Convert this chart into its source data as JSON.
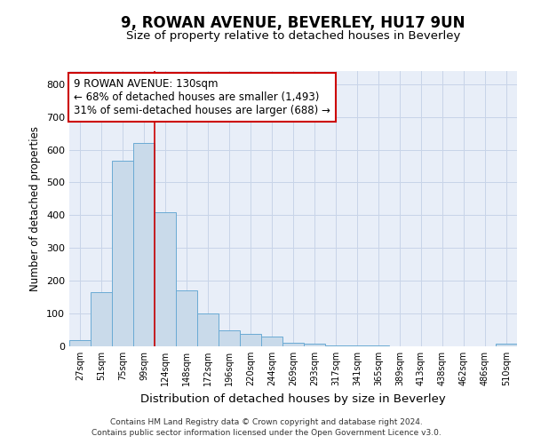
{
  "title1": "9, ROWAN AVENUE, BEVERLEY, HU17 9UN",
  "title2": "Size of property relative to detached houses in Beverley",
  "xlabel": "Distribution of detached houses by size in Beverley",
  "ylabel": "Number of detached properties",
  "categories": [
    "27sqm",
    "51sqm",
    "75sqm",
    "99sqm",
    "124sqm",
    "148sqm",
    "172sqm",
    "196sqm",
    "220sqm",
    "244sqm",
    "269sqm",
    "293sqm",
    "317sqm",
    "341sqm",
    "365sqm",
    "389sqm",
    "413sqm",
    "438sqm",
    "462sqm",
    "486sqm",
    "510sqm"
  ],
  "values": [
    18,
    165,
    565,
    620,
    410,
    172,
    100,
    50,
    38,
    30,
    10,
    8,
    3,
    2,
    2,
    1,
    1,
    0,
    0,
    0,
    7
  ],
  "bar_color": "#c9daea",
  "bar_edge_color": "#6aaad4",
  "vline_color": "#cc0000",
  "vline_pos": 3.5,
  "annotation_text": "9 ROWAN AVENUE: 130sqm\n← 68% of detached houses are smaller (1,493)\n31% of semi-detached houses are larger (688) →",
  "annotation_box_facecolor": "#ffffff",
  "annotation_box_edgecolor": "#cc0000",
  "grid_color": "#c8d4e8",
  "background_color": "#e8eef8",
  "footer1": "Contains HM Land Registry data © Crown copyright and database right 2024.",
  "footer2": "Contains public sector information licensed under the Open Government Licence v3.0.",
  "ylim": [
    0,
    840
  ],
  "yticks": [
    0,
    100,
    200,
    300,
    400,
    500,
    600,
    700,
    800
  ]
}
